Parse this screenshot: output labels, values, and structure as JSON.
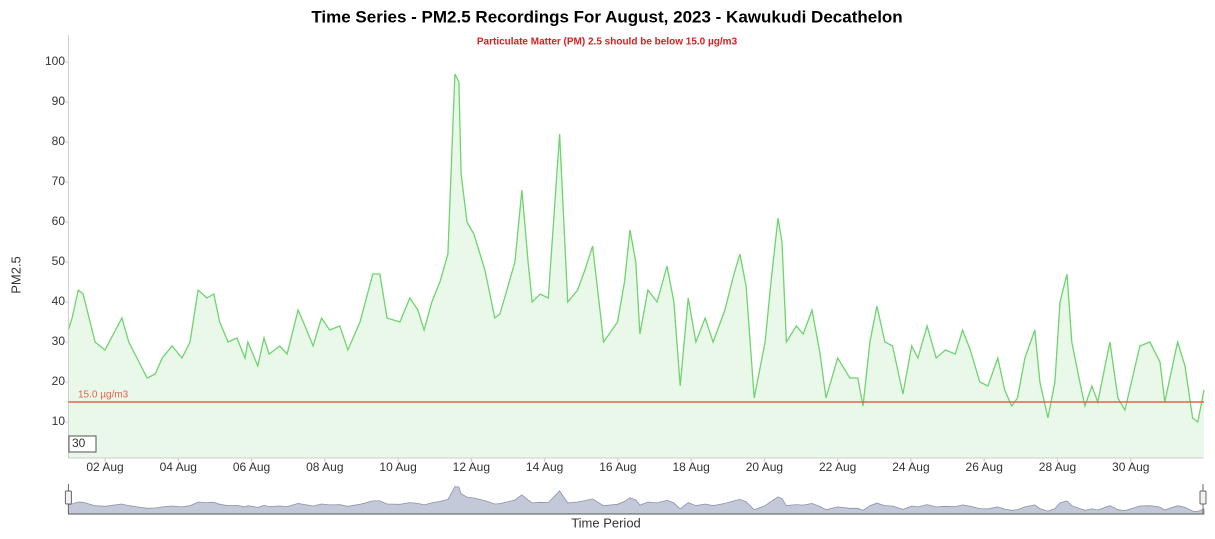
{
  "chart_data": {
    "type": "area",
    "title": "Time Series - PM2.5 Recordings For August, 2023 - Kawukudi Decathelon",
    "subtitle": "Particulate Matter (PM) 2.5 should be below 15.0 µg/m3",
    "y_label": "PM2.5",
    "x_label": "Time Period",
    "zoom_label": "30",
    "threshold": 15,
    "threshold_label": "15.0 µg/m3",
    "threshold_color": "#e8604c",
    "xlim": [
      1,
      32
    ],
    "ylim": [
      1,
      106
    ],
    "yticks": [
      10,
      20,
      30,
      40,
      50,
      60,
      70,
      80,
      90,
      100
    ],
    "xticks": [
      {
        "value": 2,
        "label": "02 Aug"
      },
      {
        "value": 4,
        "label": "04 Aug"
      },
      {
        "value": 6,
        "label": "06 Aug"
      },
      {
        "value": 8,
        "label": "08 Aug"
      },
      {
        "value": 10,
        "label": "10 Aug"
      },
      {
        "value": 12,
        "label": "12 Aug"
      },
      {
        "value": 14,
        "label": "14 Aug"
      },
      {
        "value": 16,
        "label": "16 Aug"
      },
      {
        "value": 18,
        "label": "18 Aug"
      },
      {
        "value": 20,
        "label": "20 Aug"
      },
      {
        "value": 22,
        "label": "22 Aug"
      },
      {
        "value": 24,
        "label": "24 Aug"
      },
      {
        "value": 26,
        "label": "26 Aug"
      },
      {
        "value": 28,
        "label": "28 Aug"
      },
      {
        "value": 30,
        "label": "30 Aug"
      }
    ],
    "grid": false,
    "color": "#6fd36f",
    "fill": "#e9f8e9",
    "x": [
      1.0,
      1.1,
      1.27,
      1.4,
      1.73,
      2.0,
      2.46,
      2.65,
      2.87,
      3.15,
      3.37,
      3.56,
      3.83,
      4.1,
      4.32,
      4.54,
      4.78,
      4.97,
      5.13,
      5.36,
      5.6,
      5.82,
      5.9,
      6.17,
      6.34,
      6.48,
      6.77,
      6.97,
      7.27,
      7.46,
      7.68,
      7.91,
      8.13,
      8.41,
      8.63,
      8.96,
      9.31,
      9.5,
      9.7,
      10.05,
      10.32,
      10.54,
      10.71,
      10.92,
      11.14,
      11.36,
      11.55,
      11.66,
      11.72,
      11.88,
      12.07,
      12.37,
      12.64,
      12.78,
      12.97,
      13.19,
      13.38,
      13.55,
      13.66,
      13.88,
      14.1,
      14.41,
      14.63,
      14.9,
      15.1,
      15.31,
      15.61,
      15.99,
      16.18,
      16.33,
      16.49,
      16.6,
      16.82,
      17.07,
      17.34,
      17.53,
      17.7,
      17.92,
      18.13,
      18.38,
      18.6,
      18.92,
      19.14,
      19.33,
      19.5,
      19.72,
      20.02,
      20.18,
      20.37,
      20.48,
      20.6,
      20.87,
      21.06,
      21.3,
      21.52,
      21.68,
      22.0,
      22.33,
      22.55,
      22.69,
      22.88,
      23.07,
      23.29,
      23.5,
      23.78,
      24.02,
      24.19,
      24.44,
      24.69,
      24.94,
      25.21,
      25.41,
      25.62,
      25.88,
      26.1,
      26.37,
      26.56,
      26.75,
      26.91,
      27.11,
      27.38,
      27.52,
      27.74,
      27.93,
      28.07,
      28.26,
      28.39,
      28.61,
      28.75,
      28.94,
      29.1,
      29.43,
      29.65,
      29.84,
      30.25,
      30.52,
      30.8,
      30.93,
      31.28,
      31.48,
      31.69,
      31.83,
      32.0
    ],
    "values": [
      33,
      36,
      43,
      42,
      30,
      28,
      36,
      30,
      26,
      21,
      22,
      26,
      29,
      26,
      30,
      43,
      41,
      42,
      35,
      30,
      31,
      26,
      30,
      24,
      31,
      27,
      29,
      27,
      38,
      34,
      29,
      36,
      33,
      34,
      28,
      35,
      47,
      47,
      36,
      35,
      41,
      38,
      33,
      40,
      45,
      52,
      97,
      95,
      72,
      60,
      57,
      48,
      36,
      37,
      43,
      50,
      68,
      50,
      40,
      42,
      41,
      82,
      40,
      43,
      48,
      54,
      30,
      35,
      45,
      58,
      50,
      32,
      43,
      40,
      49,
      40,
      19,
      41,
      30,
      36,
      30,
      38,
      46,
      52,
      44,
      16,
      30,
      45,
      61,
      55,
      30,
      34,
      32,
      38,
      27,
      16,
      26,
      21,
      21,
      14,
      30,
      39,
      30,
      29,
      17,
      29,
      26,
      34,
      26,
      28,
      27,
      33,
      28,
      20,
      19,
      26,
      18,
      14,
      16,
      26,
      33,
      20,
      11,
      20,
      40,
      47,
      30,
      20,
      14,
      19,
      15,
      30,
      16,
      13,
      29,
      30,
      25,
      15,
      30,
      24,
      11,
      10,
      18
    ]
  }
}
